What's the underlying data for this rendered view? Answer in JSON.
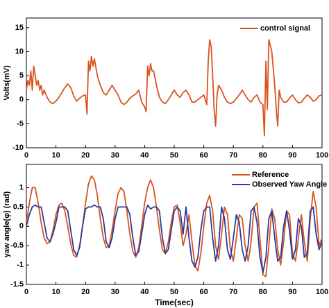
{
  "chart_data": [
    {
      "type": "line",
      "ylabel": "Volts(mV)",
      "legend": "upper right",
      "xlim": [
        0,
        100
      ],
      "xticks": [
        0,
        10,
        20,
        30,
        40,
        50,
        60,
        70,
        80,
        90,
        100
      ],
      "ylim": [
        -10,
        17
      ],
      "yticks": [
        -10,
        -5,
        0,
        5,
        10,
        15
      ],
      "x": [
        0,
        0.5,
        1,
        1.5,
        2,
        2.5,
        3,
        3.5,
        4,
        4.5,
        5,
        5.5,
        6,
        7,
        8,
        9,
        10,
        11,
        12,
        13,
        14,
        15,
        16,
        17,
        18,
        19,
        20,
        20.5,
        21,
        21.5,
        22,
        22.5,
        23,
        24,
        25,
        26,
        27,
        28,
        29,
        30,
        31,
        32,
        33,
        34,
        35,
        36,
        37,
        38,
        39,
        40,
        40.5,
        41,
        41.5,
        42,
        42.5,
        43,
        44,
        45,
        46,
        47,
        48,
        49,
        50,
        51,
        52,
        53,
        54,
        55,
        56,
        57,
        58,
        59,
        60,
        61,
        61.5,
        62,
        62.5,
        63,
        63.5,
        64,
        64.5,
        65,
        66,
        67,
        68,
        69,
        70,
        71,
        72,
        73,
        74,
        75,
        76,
        77,
        78,
        79,
        80,
        80.5,
        81,
        81.5,
        82,
        83,
        84,
        84.5,
        85,
        85.5,
        86,
        87,
        88,
        89,
        90,
        91,
        92,
        93,
        94,
        95,
        96,
        97,
        98,
        99,
        100
      ],
      "series": [
        {
          "name": "control signal",
          "color": "#d9531e",
          "values": [
            2,
            4,
            3,
            6,
            2,
            7,
            5,
            3,
            4,
            2,
            3,
            1,
            2,
            0.5,
            -0.5,
            -0.8,
            -0.3,
            0.5,
            1.5,
            2.5,
            3.3,
            2.5,
            0.8,
            -0.3,
            0.3,
            0.8,
            1,
            -3,
            8,
            6,
            9,
            7,
            8.5,
            5,
            3,
            1.5,
            1,
            2,
            3,
            2,
            1,
            -0.5,
            -1,
            -0.5,
            0.3,
            0.8,
            1.2,
            2,
            -0.5,
            -1.5,
            -2.5,
            7,
            5,
            7.5,
            6,
            6,
            3,
            0.5,
            -0.5,
            -0.8,
            0,
            1,
            2,
            1,
            0.5,
            1.5,
            2,
            1,
            -0.5,
            -0.5,
            0,
            0.5,
            1,
            -1,
            8,
            12.5,
            11,
            5,
            -2,
            -5.5,
            1,
            3,
            2,
            0.5,
            -0.5,
            -0.8,
            -0.5,
            0.3,
            1,
            2,
            1,
            0,
            -0.5,
            0.5,
            1,
            -0.5,
            -1,
            -7.5,
            8,
            -2,
            12.5,
            10,
            3,
            -2,
            -5.5,
            2,
            0.5,
            -0.5,
            -0.5,
            0.3,
            1,
            0,
            -0.7,
            -0.5,
            0.3,
            1,
            0.5,
            -0.3,
            0,
            0.8,
            1
          ]
        }
      ]
    },
    {
      "type": "line",
      "ylabel": "yaw angle(φ) (rad)",
      "xlabel": "Time(sec)",
      "legend": "upper right",
      "xlim": [
        0,
        100
      ],
      "xticks": [
        0,
        10,
        20,
        30,
        40,
        50,
        60,
        70,
        80,
        90,
        100
      ],
      "ylim": [
        -1.5,
        1.6
      ],
      "yticks": [
        -1.5,
        -1,
        -0.5,
        0,
        0.5,
        1
      ],
      "x": [
        0,
        1,
        2,
        3,
        4,
        5,
        6,
        7,
        8,
        9,
        10,
        11,
        12,
        13,
        14,
        15,
        16,
        17,
        18,
        19,
        20,
        21,
        22,
        23,
        24,
        25,
        26,
        27,
        28,
        29,
        30,
        31,
        32,
        33,
        34,
        35,
        36,
        37,
        38,
        39,
        40,
        41,
        42,
        43,
        44,
        45,
        46,
        47,
        48,
        49,
        50,
        51,
        52,
        53,
        54,
        55,
        56,
        57,
        58,
        59,
        60,
        61,
        62,
        63,
        64,
        65,
        66,
        67,
        68,
        69,
        70,
        71,
        72,
        73,
        74,
        75,
        76,
        77,
        78,
        79,
        80,
        81,
        82,
        83,
        84,
        85,
        86,
        87,
        88,
        89,
        90,
        91,
        92,
        93,
        94,
        95,
        96,
        97,
        98,
        99,
        100
      ],
      "series": [
        {
          "name": "Reference",
          "color": "#d9531e",
          "values": [
            0.1,
            0.6,
            1.0,
            1.0,
            0.6,
            0.1,
            -0.3,
            -0.45,
            -0.4,
            -0.1,
            0.3,
            0.55,
            0.6,
            0.4,
            0.0,
            -0.45,
            -0.75,
            -0.8,
            -0.5,
            0.0,
            0.6,
            1.1,
            1.3,
            1.2,
            0.8,
            0.2,
            -0.3,
            -0.55,
            -0.5,
            -0.1,
            0.4,
            0.85,
            1.0,
            0.9,
            0.4,
            -0.2,
            -0.65,
            -0.8,
            -0.55,
            0.0,
            0.6,
            1.0,
            1.2,
            1.0,
            0.5,
            -0.1,
            -0.6,
            -0.7,
            -0.4,
            0.1,
            0.5,
            0.55,
            0.1,
            -0.5,
            -0.2,
            0.3,
            -0.4,
            -1.0,
            -1.15,
            -0.7,
            0.0,
            0.6,
            0.8,
            0.4,
            -0.5,
            -0.85,
            -0.2,
            0.5,
            0.3,
            -0.6,
            -0.9,
            -0.3,
            0.3,
            0.2,
            -0.5,
            -0.9,
            -0.4,
            0.5,
            0.6,
            -0.3,
            -1.25,
            -1.3,
            -0.5,
            0.45,
            0.2,
            -0.6,
            -1.0,
            -0.4,
            0.4,
            0.3,
            -0.7,
            -0.9,
            -0.3,
            0.3,
            -0.4,
            -0.9,
            0.2,
            0.9,
            0.5,
            -0.5,
            -0.3
          ]
        },
        {
          "name": "Observed Yaw Angle",
          "color": "#2b3a9a",
          "values": [
            0.0,
            0.3,
            0.5,
            0.55,
            0.5,
            0.5,
            0.1,
            -0.3,
            -0.4,
            -0.2,
            0.1,
            0.5,
            0.5,
            0.5,
            0.4,
            -0.1,
            -0.6,
            -0.75,
            -0.55,
            0.0,
            0.45,
            0.5,
            0.5,
            0.55,
            0.5,
            0.5,
            0.2,
            -0.4,
            -0.55,
            -0.3,
            0.2,
            0.5,
            0.5,
            0.5,
            0.5,
            0.3,
            -0.3,
            -0.75,
            -0.65,
            -0.2,
            0.3,
            0.55,
            0.45,
            0.5,
            0.5,
            0.4,
            -0.3,
            -0.7,
            -0.6,
            -0.1,
            0.4,
            0.5,
            0.4,
            -0.2,
            0.5,
            -0.3,
            -0.9,
            -1.05,
            -0.8,
            -0.1,
            0.4,
            0.5,
            0.5,
            -0.3,
            -0.9,
            -0.5,
            0.5,
            0.2,
            -0.6,
            -0.85,
            -0.3,
            0.3,
            0.1,
            -0.6,
            -0.9,
            -0.5,
            0.4,
            0.5,
            0.1,
            -0.8,
            -1.2,
            -0.8,
            0.2,
            0.4,
            -0.3,
            -0.9,
            -0.8,
            0.0,
            0.4,
            -0.1,
            -0.85,
            -0.6,
            0.2,
            0.0,
            -0.8,
            -0.7,
            0.4,
            0.5,
            -0.2,
            -0.6,
            -0.4
          ]
        }
      ]
    }
  ]
}
